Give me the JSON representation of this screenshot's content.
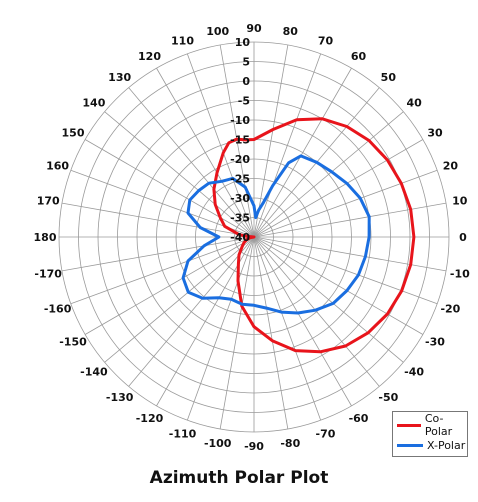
{
  "title": "Azimuth Polar Plot",
  "chart_data": {
    "type": "polar",
    "title": "Azimuth Polar Plot",
    "angle_unit": "degrees",
    "angle_zero": "right",
    "angle_direction": "counter-clockwise",
    "radial_range": [
      -40,
      10
    ],
    "radial_ticks": [
      10,
      5,
      0,
      -5,
      -10,
      -15,
      -20,
      -25,
      -30,
      -35,
      -40
    ],
    "angle_ticks": [
      0,
      10,
      20,
      30,
      40,
      50,
      60,
      70,
      80,
      90,
      100,
      110,
      120,
      130,
      140,
      150,
      160,
      170,
      180,
      -170,
      -160,
      -150,
      -140,
      -130,
      -120,
      -110,
      -100,
      -90,
      -80,
      -70,
      -60,
      -50,
      -40,
      -30,
      -20,
      -10
    ],
    "grid": true,
    "legend_position": "bottom-right",
    "series": [
      {
        "name": "Co-Polar",
        "color": "#e8141b",
        "angles": [
          0,
          10,
          20,
          30,
          40,
          50,
          60,
          70,
          80,
          90,
          95,
          100,
          105,
          110,
          120,
          130,
          140,
          150,
          160,
          170,
          175,
          180,
          -170,
          -160,
          -150,
          -140,
          -130,
          -120,
          -110,
          -100,
          -90,
          -80,
          -70,
          -60,
          -50,
          -40,
          -30,
          -20,
          -10
        ],
        "values": [
          1,
          0.8,
          0.2,
          -0.5,
          -1.5,
          -3,
          -5,
          -8,
          -12,
          -15,
          -15,
          -14.5,
          -15,
          -17,
          -21,
          -24,
          -27,
          -30,
          -32,
          -36,
          -38,
          -40,
          -39,
          -38,
          -37,
          -36,
          -34,
          -32,
          -28,
          -22,
          -17,
          -13,
          -9,
          -6,
          -3.5,
          -1.8,
          -0.5,
          0.3,
          0.8
        ]
      },
      {
        "name": "X-Polar",
        "color": "#1a6ee0",
        "angles": [
          0,
          10,
          20,
          30,
          40,
          50,
          60,
          65,
          70,
          75,
          80,
          85,
          90,
          100,
          110,
          120,
          130,
          140,
          150,
          160,
          170,
          180,
          -170,
          -160,
          -150,
          -140,
          -130,
          -120,
          -110,
          -100,
          -90,
          -80,
          -70,
          -60,
          -50,
          -40,
          -30,
          -20,
          -10
        ],
        "values": [
          -10.5,
          -10,
          -11,
          -12.5,
          -14,
          -15,
          -16,
          -19,
          -26,
          -31,
          -33,
          -35,
          -32,
          -27,
          -24,
          -23.5,
          -22,
          -21.5,
          -21,
          -22,
          -26,
          -31,
          -27,
          -22,
          -19,
          -18,
          -19.5,
          -22,
          -23,
          -22.5,
          -22.5,
          -21.5,
          -19.5,
          -17.5,
          -15.5,
          -13.5,
          -12.5,
          -11.5,
          -11
        ]
      }
    ]
  }
}
